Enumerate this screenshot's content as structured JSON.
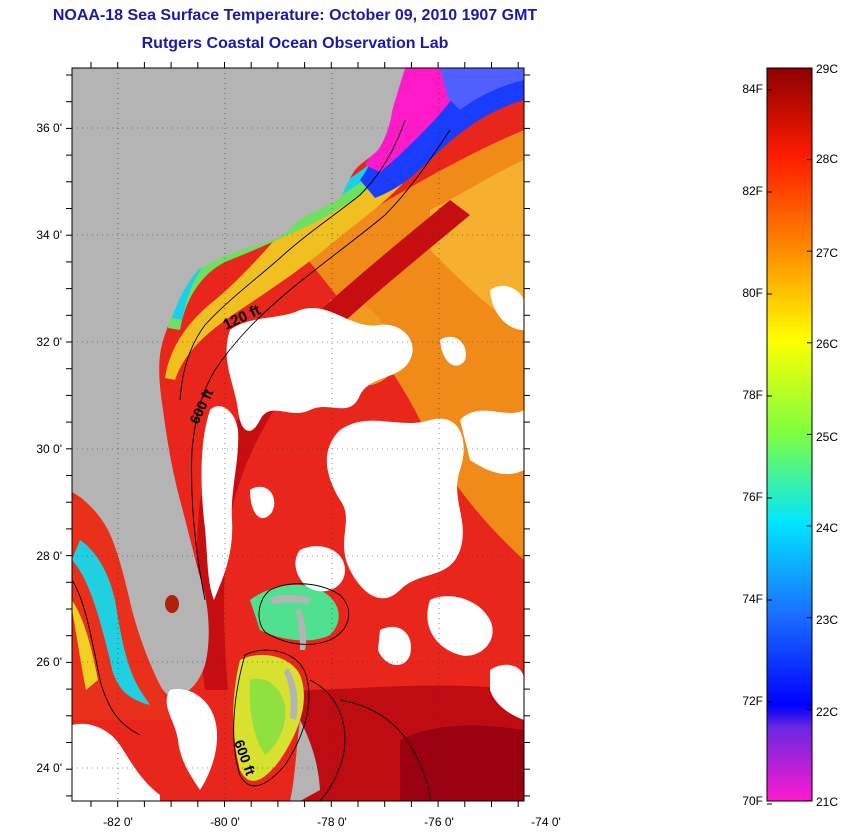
{
  "header": {
    "title_line1": "NOAA-18 Sea Surface Temperature:  October 09, 2010 1907 GMT",
    "title_line2": "Rutgers Coastal Ocean Observation Lab"
  },
  "map": {
    "lat_labels": [
      "36 0'",
      "34 0'",
      "32 0'",
      "30 0'",
      "28 0'",
      "26 0'",
      "24 0'"
    ],
    "lon_labels": [
      "-82 0'",
      "-80 0'",
      "-78 0'",
      "-76 0'",
      "-74 0'"
    ],
    "contour_labels": [
      "120 ft",
      "600 ft",
      "600 ft"
    ],
    "colors": {
      "land": "#b4b4b4",
      "cloud": "#ffffff",
      "warm_ocean": "#e8261b",
      "hot_ocean": "#b5000e",
      "mid_ocean": "#f07a10",
      "cool_shelf": "#18c8e0",
      "cold_shelf": "#ff18c8"
    }
  },
  "colorbar": {
    "fahrenheit": [
      "84F",
      "82F",
      "80F",
      "78F",
      "76F",
      "74F",
      "72F",
      "70F"
    ],
    "celsius": [
      "29C",
      "28C",
      "27C",
      "26C",
      "25C",
      "24C",
      "23C",
      "22C",
      "21C"
    ],
    "range_c": [
      21,
      29
    ],
    "range_f": [
      70,
      84
    ]
  }
}
